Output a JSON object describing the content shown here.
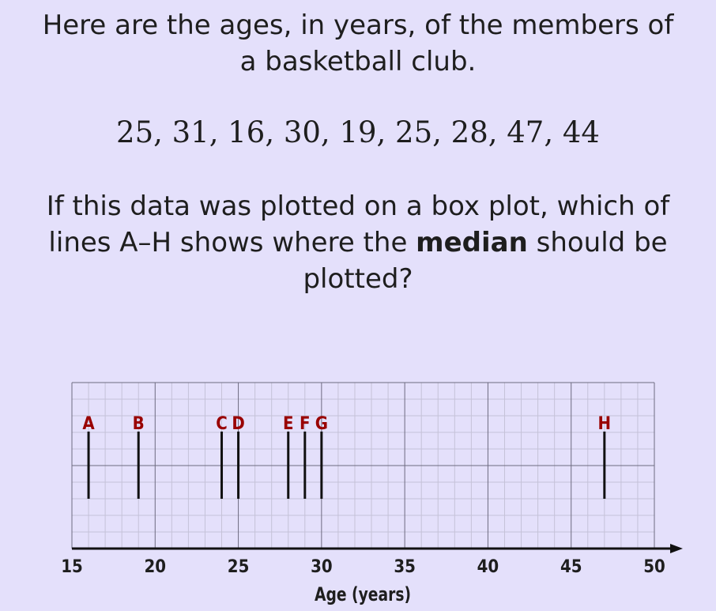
{
  "question": {
    "intro_line1": "Here are the ages, in years, of the members of",
    "intro_line2": "a basketball club.",
    "data_values": "25, 31, 16, 30, 19, 25, 28, 47, 44",
    "prompt_line1": "If this data was plotted on a box plot, which of",
    "prompt_line2_pre": "lines A–H shows where the ",
    "prompt_line2_bold": "median",
    "prompt_line2_post": " should be",
    "prompt_line3": "plotted?"
  },
  "chart_data": {
    "type": "number-line",
    "xlabel": "Age (years)",
    "xlim": [
      15,
      50
    ],
    "ticks": [
      15,
      20,
      25,
      30,
      35,
      40,
      45,
      50
    ],
    "grid": true,
    "marker_color": "#990000",
    "markers": [
      {
        "label": "A",
        "x": 16
      },
      {
        "label": "B",
        "x": 19
      },
      {
        "label": "C",
        "x": 24
      },
      {
        "label": "D",
        "x": 25
      },
      {
        "label": "E",
        "x": 28
      },
      {
        "label": "F",
        "x": 29
      },
      {
        "label": "G",
        "x": 30
      },
      {
        "label": "H",
        "x": 47
      }
    ]
  }
}
